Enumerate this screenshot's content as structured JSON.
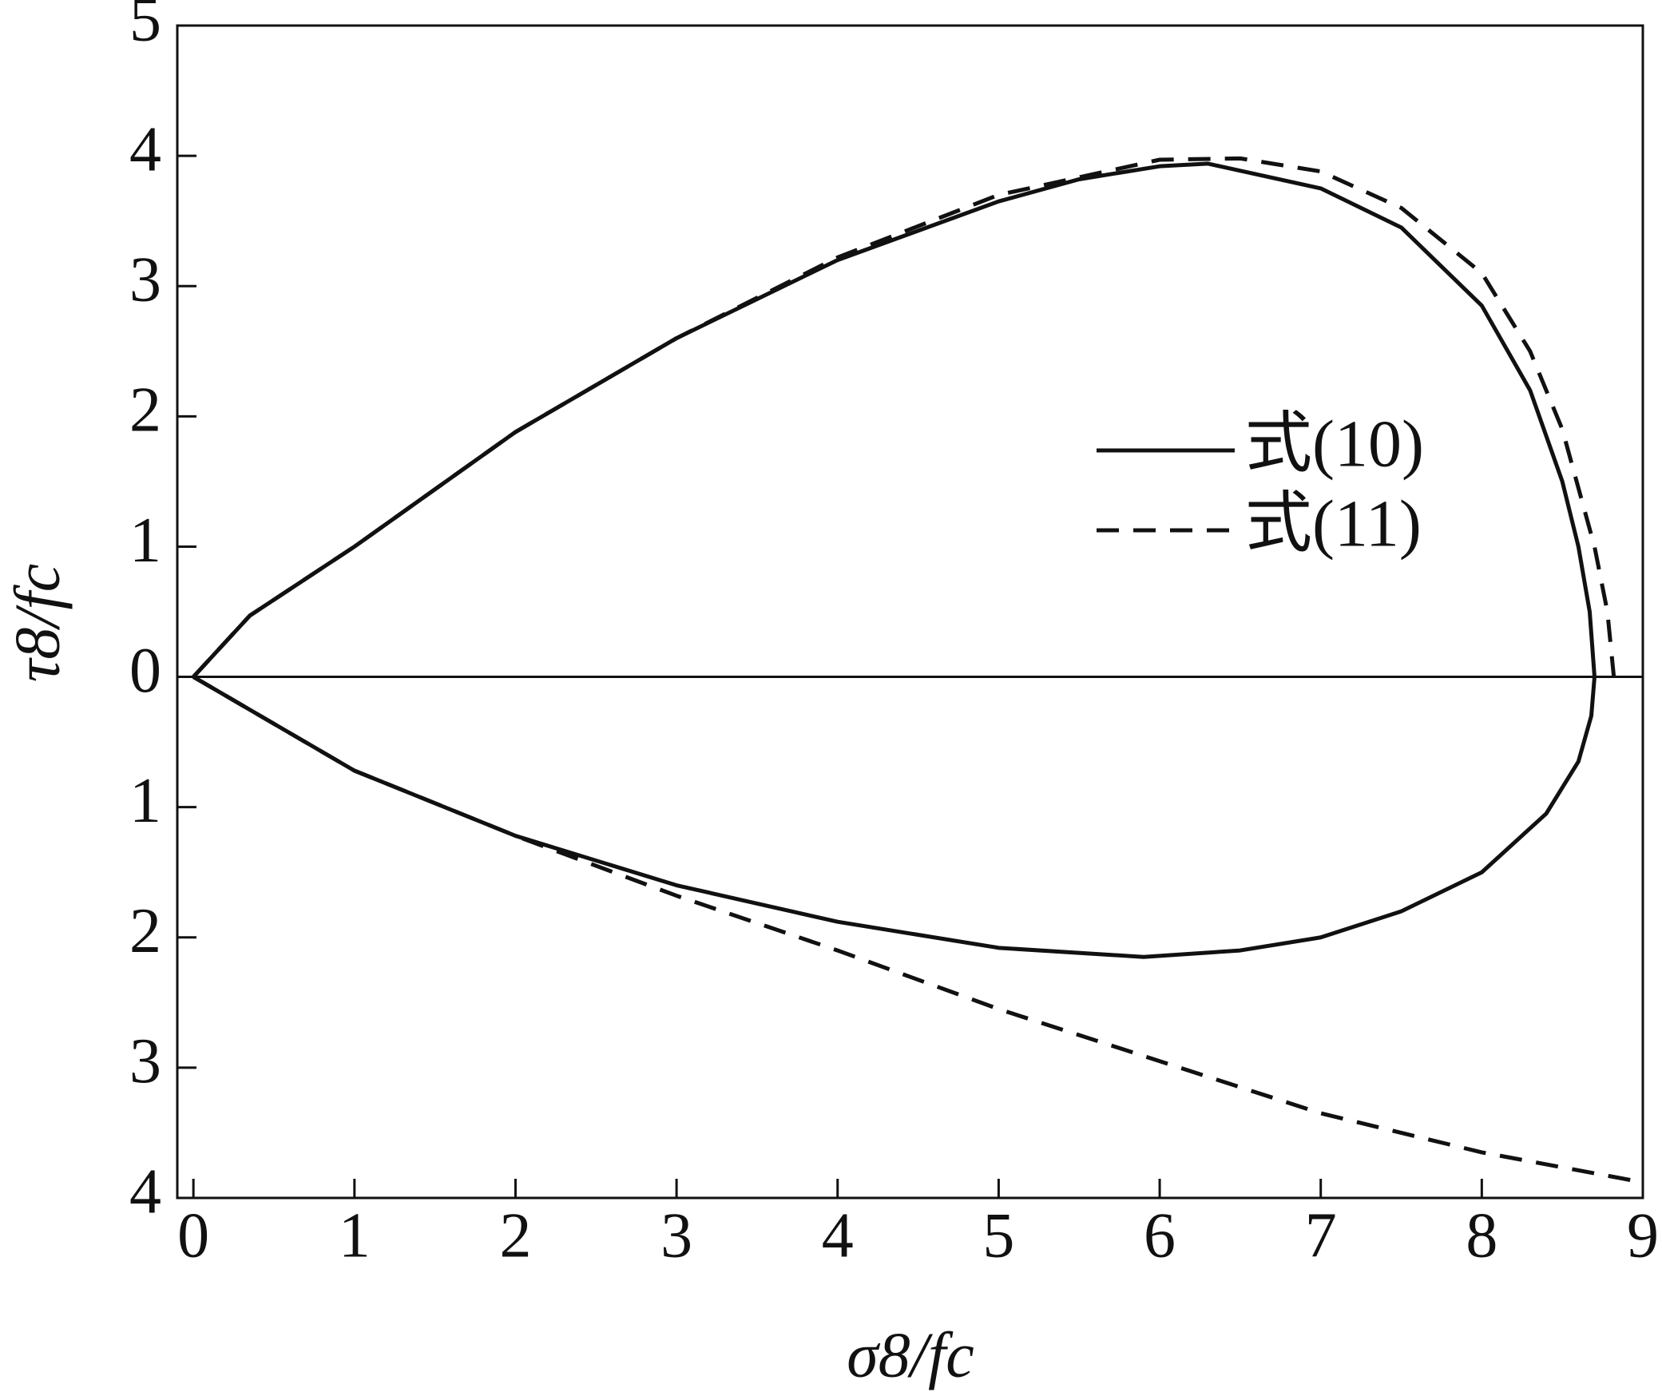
{
  "chart_data": {
    "type": "line",
    "xlabel": "σ8/fc",
    "ylabel": "τ8/fc",
    "xlim": [
      -0.1,
      9
    ],
    "xticks": [
      0,
      1,
      2,
      3,
      4,
      5,
      6,
      7,
      8,
      9
    ],
    "ylim": [
      -4,
      5
    ],
    "yticks": [
      5,
      4,
      3,
      2,
      1,
      0,
      {
        "value": -1,
        "label": "1"
      },
      {
        "value": -2,
        "label": "2"
      },
      {
        "value": -3,
        "label": "3"
      },
      {
        "value": -4,
        "label": "4"
      }
    ],
    "series": [
      {
        "name": "式(10)",
        "color": "#111111",
        "linestyle": "solid",
        "x": [
          0,
          0.35,
          1,
          2,
          3,
          4,
          5,
          5.5,
          6,
          6.3,
          7,
          7.5,
          8,
          8.3,
          8.5,
          8.6,
          8.67,
          8.7,
          8.68,
          8.6,
          8.4,
          8,
          7.5,
          7,
          6.5,
          5.9,
          5,
          4,
          3,
          2,
          1,
          0
        ],
        "values": [
          0,
          0.47,
          1.0,
          1.88,
          2.6,
          3.2,
          3.65,
          3.82,
          3.92,
          3.94,
          3.75,
          3.45,
          2.85,
          2.2,
          1.5,
          1.0,
          0.5,
          0,
          -0.3,
          -0.65,
          -1.05,
          -1.5,
          -1.8,
          -2.0,
          -2.1,
          -2.15,
          -2.08,
          -1.88,
          -1.6,
          -1.22,
          -0.72,
          0
        ]
      },
      {
        "name": "式(11)",
        "color": "#111111",
        "linestyle": "dashed",
        "x": [
          0,
          0.35,
          1,
          2,
          3,
          4,
          5,
          6,
          6.5,
          7,
          7.5,
          8,
          8.3,
          8.5,
          8.7,
          8.78,
          8.82
        ],
        "values": [
          0,
          0.47,
          1.0,
          1.88,
          2.6,
          3.22,
          3.7,
          3.97,
          3.98,
          3.88,
          3.6,
          3.1,
          2.5,
          1.9,
          1.0,
          0.5,
          0
        ]
      },
      {
        "name": "式(11)",
        "color": "#111111",
        "linestyle": "dashed",
        "x": [
          0,
          1,
          2,
          3,
          4,
          5,
          6,
          7,
          8,
          9
        ],
        "values": [
          0,
          -0.72,
          -1.22,
          -1.68,
          -2.1,
          -2.55,
          -2.95,
          -3.35,
          -3.65,
          -3.88
        ]
      }
    ]
  }
}
